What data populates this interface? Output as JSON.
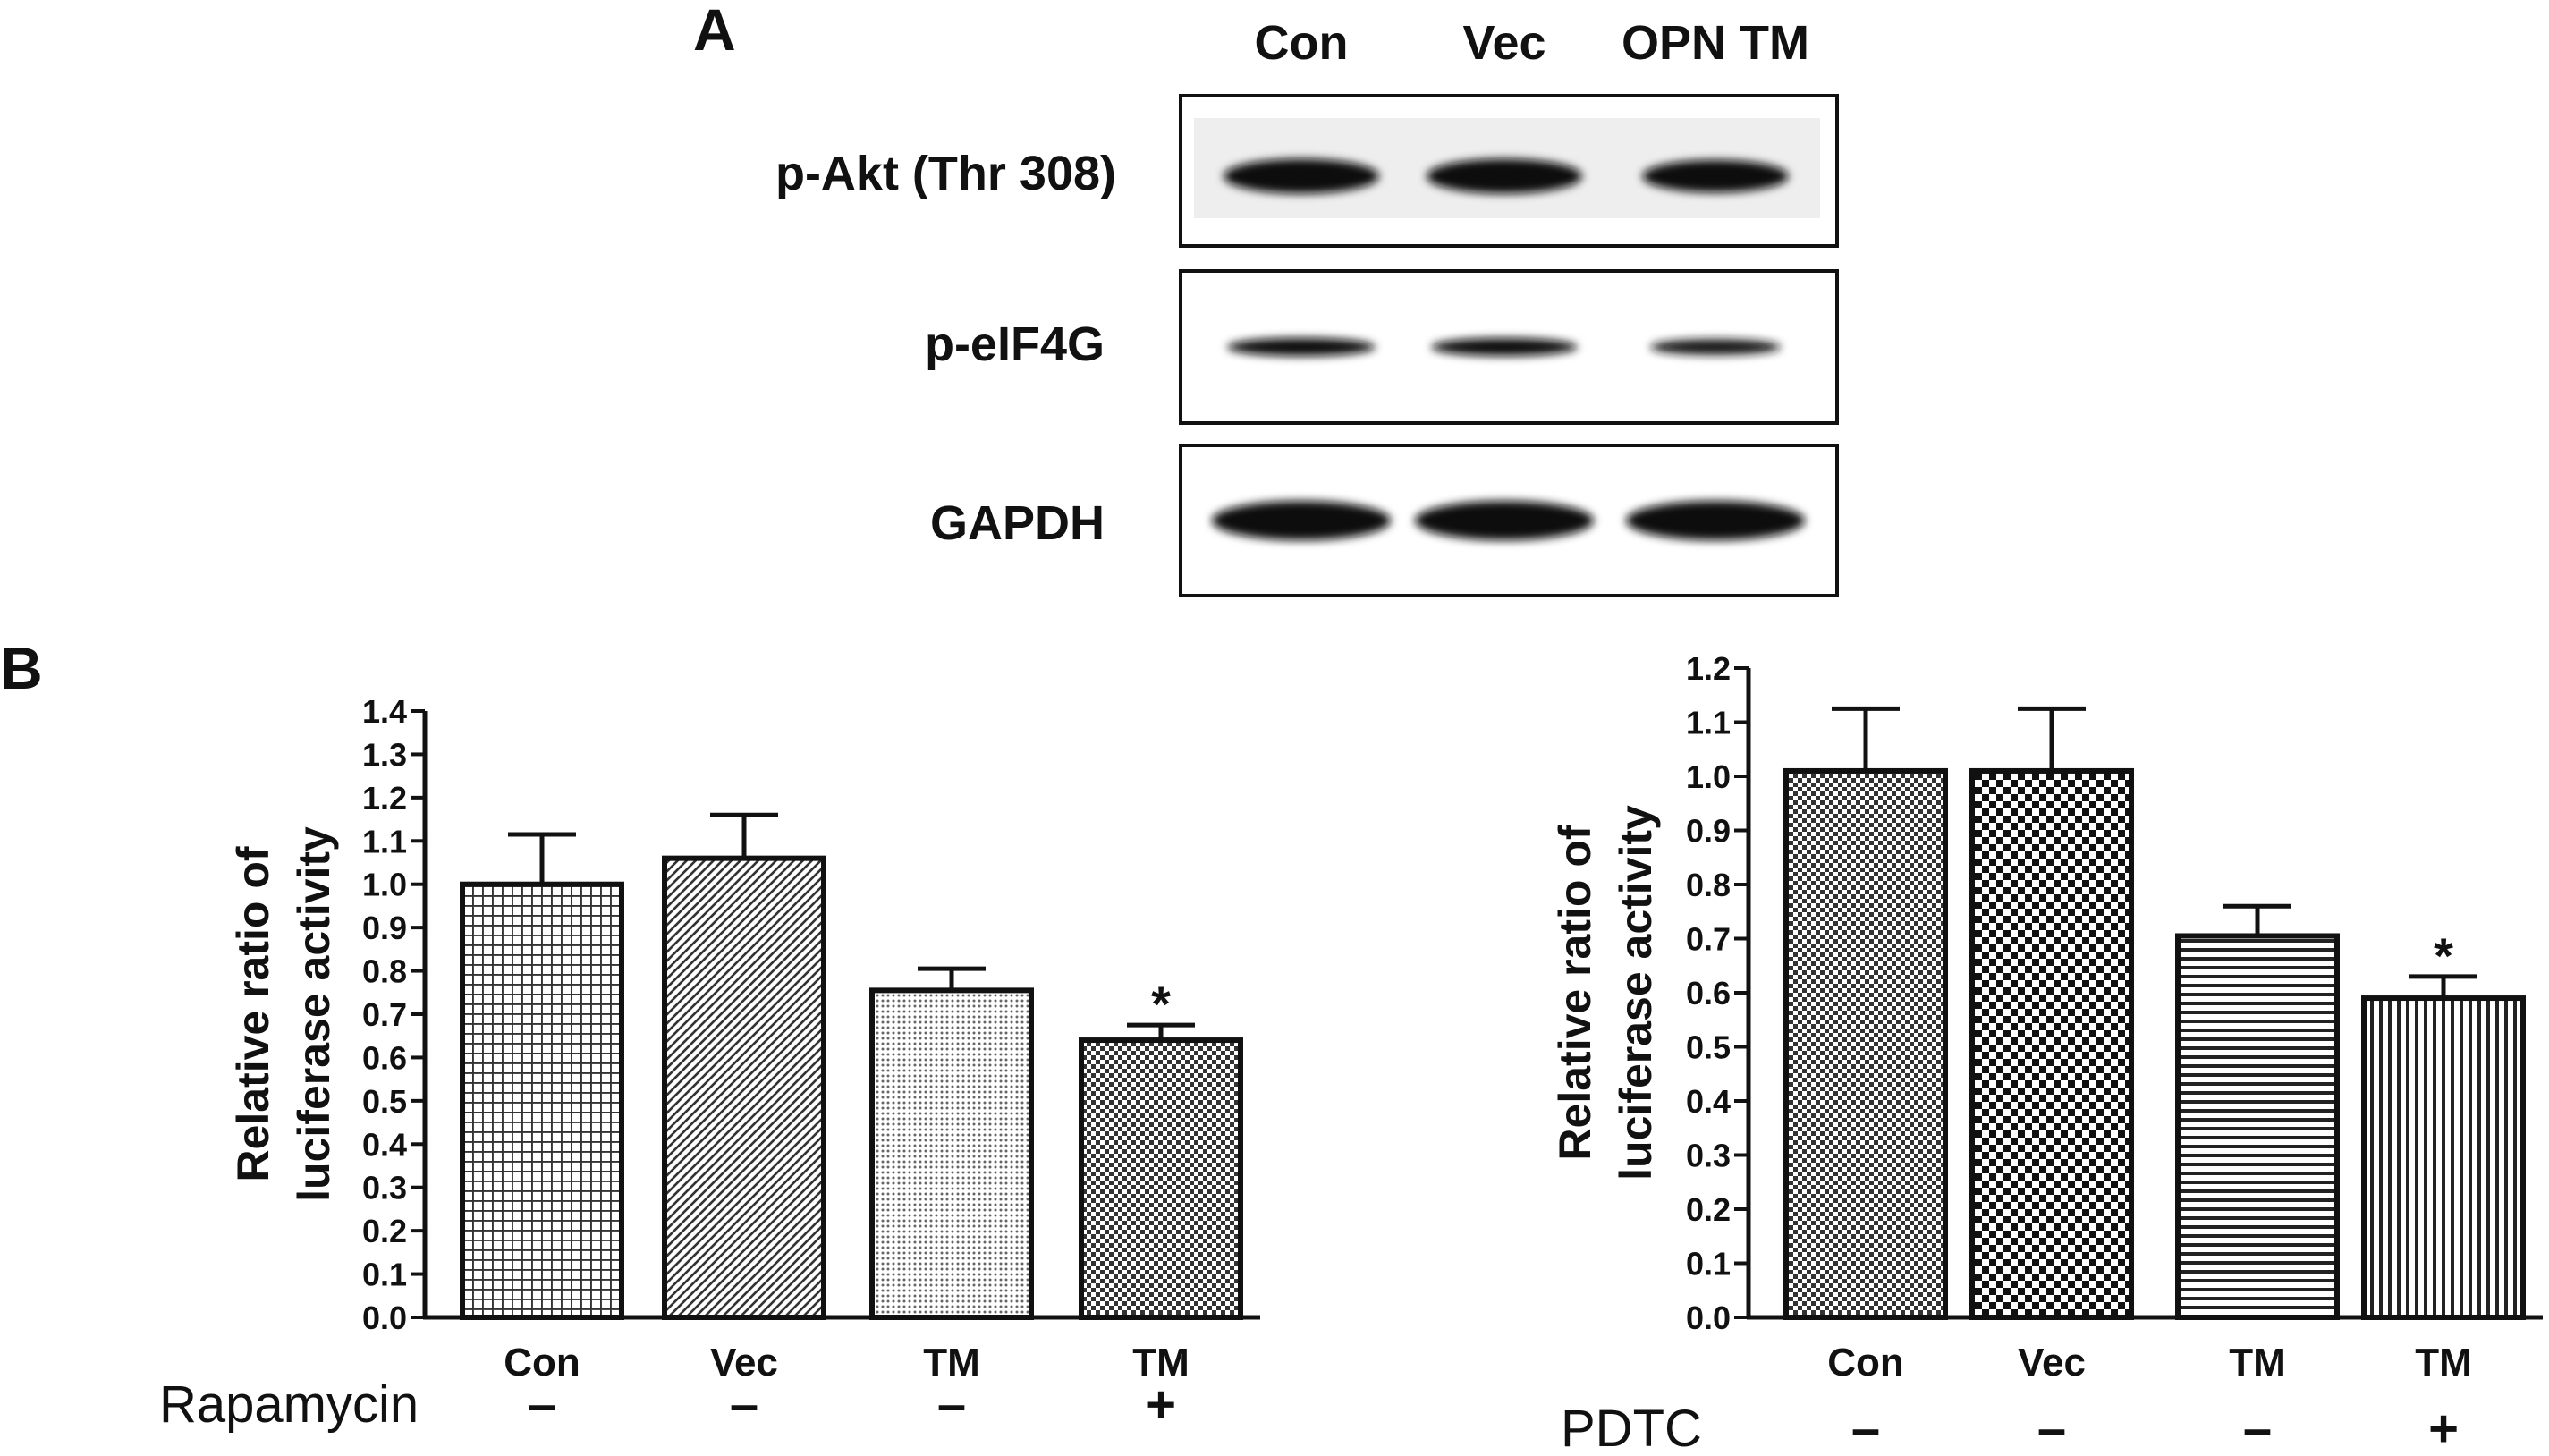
{
  "panel_a": {
    "letter": "A",
    "lanes": [
      "Con",
      "Vec",
      "OPN TM"
    ],
    "blots": [
      {
        "label": "p-Akt (Thr 308)",
        "intensity": [
          0.95,
          0.95,
          0.82
        ]
      },
      {
        "label": "p-eIF4G",
        "intensity": [
          0.85,
          0.82,
          0.6
        ]
      },
      {
        "label": "GAPDH",
        "intensity": [
          1.0,
          1.0,
          1.0
        ]
      }
    ]
  },
  "panel_b": {
    "letter": "B"
  },
  "chart_data": [
    {
      "type": "bar",
      "categories": [
        "Con",
        "Vec",
        "TM",
        "TM"
      ],
      "values": [
        1.0,
        1.06,
        0.755,
        0.64
      ],
      "errors": [
        0.115,
        0.1,
        0.05,
        0.035
      ],
      "significance": [
        "",
        "",
        "",
        "*"
      ],
      "ylabel": "Relative ratio of luciferase activity",
      "ylabel_lines": [
        "Relative ratio of",
        "luciferase activity"
      ],
      "ylim": [
        0,
        1.4
      ],
      "ytick_step": 0.1,
      "yticks": [
        "0.0",
        "0.1",
        "0.2",
        "0.3",
        "0.4",
        "0.5",
        "0.6",
        "0.7",
        "0.8",
        "0.9",
        "1.0",
        "1.1",
        "1.2",
        "1.3",
        "1.4"
      ],
      "condition_label": "Rapamycin",
      "condition_values": [
        "–",
        "–",
        "–",
        "+"
      ],
      "patterns": [
        "grid",
        "diag",
        "dots",
        "checker-fine"
      ]
    },
    {
      "type": "bar",
      "categories": [
        "Con",
        "Vec",
        "TM",
        "TM"
      ],
      "values": [
        1.01,
        1.01,
        0.705,
        0.59
      ],
      "errors": [
        0.115,
        0.115,
        0.055,
        0.04
      ],
      "significance": [
        "",
        "",
        "",
        "*"
      ],
      "ylabel": "Relative ratio of luciferase activity",
      "ylabel_lines": [
        "Relative ratio of",
        "luciferase activity"
      ],
      "ylim": [
        0,
        1.2
      ],
      "ytick_step": 0.1,
      "yticks": [
        "0.0",
        "0.1",
        "0.2",
        "0.3",
        "0.4",
        "0.5",
        "0.6",
        "0.7",
        "0.8",
        "0.9",
        "1.0",
        "1.1",
        "1.2"
      ],
      "condition_label": "PDTC",
      "condition_values": [
        "–",
        "–",
        "–",
        "+"
      ],
      "patterns": [
        "checker-fine",
        "checker-bold",
        "hlines",
        "vlines"
      ]
    }
  ]
}
